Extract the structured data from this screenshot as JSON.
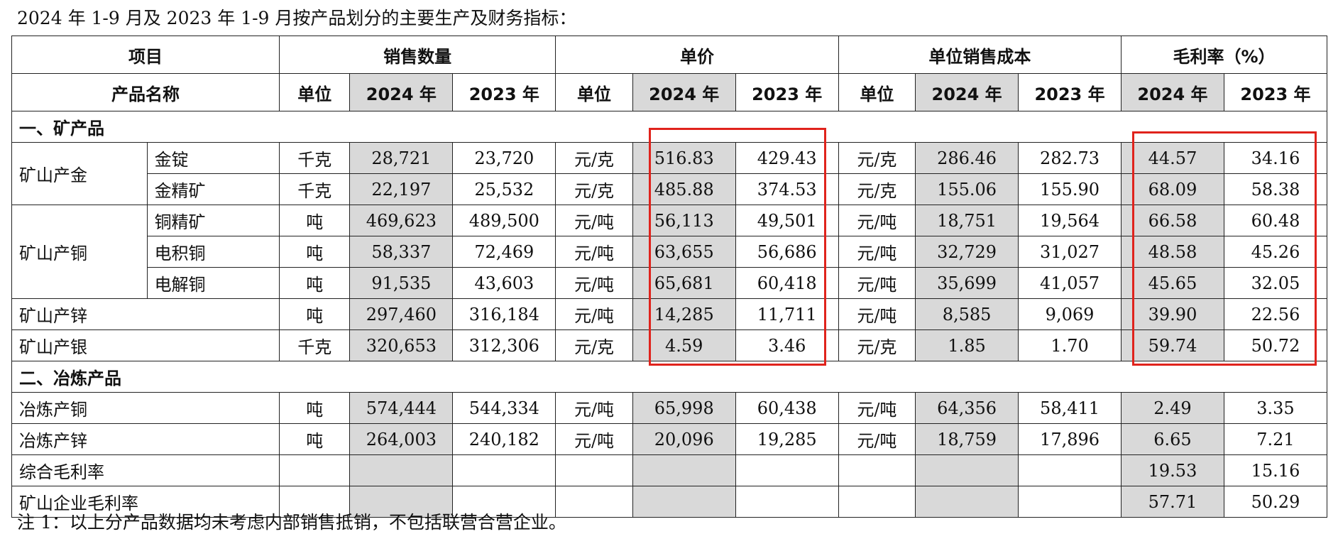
{
  "caption": "2024 年 1-9 月及 2023 年 1-9 月按产品划分的主要生产及财务指标：",
  "header1": [
    "项目",
    "销售数量",
    "单价",
    "单位销售成本",
    "毛利率（%）"
  ],
  "header2": {
    "product": "产品名称",
    "unit": "单位",
    "y2024": "2024 年",
    "y2023": "2023 年"
  },
  "sections": {
    "mine": "一、矿产品",
    "smelt": "二、冶炼产品"
  },
  "groups": {
    "gold": "矿山产金",
    "copper": "矿山产铜"
  },
  "rows": [
    {
      "name": "金锭",
      "qty_unit": "千克",
      "qty_2024": "28,721",
      "qty_2023": "23,720",
      "price_unit": "元/克",
      "price_2024": "516.83",
      "price_2023": "429.43",
      "cost_unit": "元/克",
      "cost_2024": "286.46",
      "cost_2023": "282.73",
      "gm_2024": "44.57",
      "gm_2023": "34.16"
    },
    {
      "name": "金精矿",
      "qty_unit": "千克",
      "qty_2024": "22,197",
      "qty_2023": "25,532",
      "price_unit": "元/克",
      "price_2024": "485.88",
      "price_2023": "374.53",
      "cost_unit": "元/克",
      "cost_2024": "155.06",
      "cost_2023": "155.90",
      "gm_2024": "68.09",
      "gm_2023": "58.38"
    },
    {
      "name": "铜精矿",
      "qty_unit": "吨",
      "qty_2024": "469,623",
      "qty_2023": "489,500",
      "price_unit": "元/吨",
      "price_2024": "56,113",
      "price_2023": "49,501",
      "cost_unit": "元/吨",
      "cost_2024": "18,751",
      "cost_2023": "19,564",
      "gm_2024": "66.58",
      "gm_2023": "60.48"
    },
    {
      "name": "电积铜",
      "qty_unit": "吨",
      "qty_2024": "58,337",
      "qty_2023": "72,469",
      "price_unit": "元/吨",
      "price_2024": "63,655",
      "price_2023": "56,686",
      "cost_unit": "元/吨",
      "cost_2024": "32,729",
      "cost_2023": "31,027",
      "gm_2024": "48.58",
      "gm_2023": "45.26"
    },
    {
      "name": "电解铜",
      "qty_unit": "吨",
      "qty_2024": "91,535",
      "qty_2023": "43,603",
      "price_unit": "元/吨",
      "price_2024": "65,681",
      "price_2023": "60,418",
      "cost_unit": "元/吨",
      "cost_2024": "35,699",
      "cost_2023": "41,057",
      "gm_2024": "45.65",
      "gm_2023": "32.05"
    },
    {
      "name": "矿山产锌",
      "qty_unit": "吨",
      "qty_2024": "297,460",
      "qty_2023": "316,184",
      "price_unit": "元/吨",
      "price_2024": "14,285",
      "price_2023": "11,711",
      "cost_unit": "元/吨",
      "cost_2024": "8,585",
      "cost_2023": "9,069",
      "gm_2024": "39.90",
      "gm_2023": "22.56"
    },
    {
      "name": "矿山产银",
      "qty_unit": "千克",
      "qty_2024": "320,653",
      "qty_2023": "312,306",
      "price_unit": "元/克",
      "price_2024": "4.59",
      "price_2023": "3.46",
      "cost_unit": "元/克",
      "cost_2024": "1.85",
      "cost_2023": "1.70",
      "gm_2024": "59.74",
      "gm_2023": "50.72"
    },
    {
      "name": "冶炼产铜",
      "qty_unit": "吨",
      "qty_2024": "574,444",
      "qty_2023": "544,334",
      "price_unit": "元/吨",
      "price_2024": "65,998",
      "price_2023": "60,438",
      "cost_unit": "元/吨",
      "cost_2024": "64,356",
      "cost_2023": "58,411",
      "gm_2024": "2.49",
      "gm_2023": "3.35"
    },
    {
      "name": "冶炼产锌",
      "qty_unit": "吨",
      "qty_2024": "264,003",
      "qty_2023": "240,182",
      "price_unit": "元/吨",
      "price_2024": "20,096",
      "price_2023": "19,285",
      "cost_unit": "元/吨",
      "cost_2024": "18,759",
      "cost_2023": "17,896",
      "gm_2024": "6.65",
      "gm_2023": "7.21"
    },
    {
      "name": "综合毛利率",
      "gm_2024": "19.53",
      "gm_2023": "15.16"
    },
    {
      "name": "矿山企业毛利率",
      "gm_2024": "57.71",
      "gm_2023": "50.29"
    }
  ],
  "note": "注 1：以上分产品数据均未考虑内部销售抵销，不包括联营合营企业。"
}
